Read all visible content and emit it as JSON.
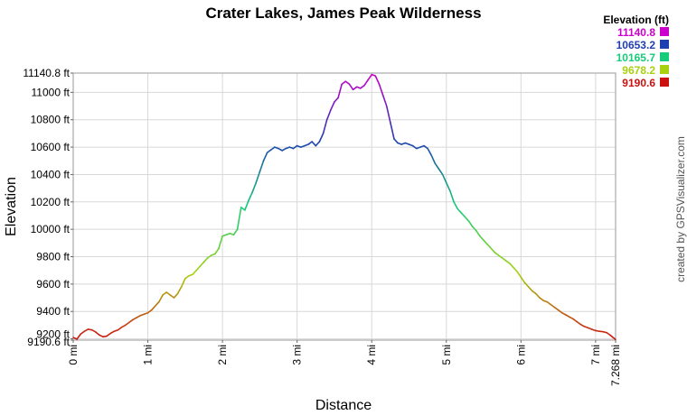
{
  "chart_data": {
    "type": "line",
    "title": "Crater Lakes, James Peak Wilderness",
    "xlabel": "Distance",
    "ylabel": "Elevation",
    "x_unit": "mi",
    "y_unit": "ft",
    "xlim": [
      0,
      7.268
    ],
    "ylim": [
      9190.6,
      11140.8
    ],
    "x_ticks": [
      {
        "value": 0,
        "label": "0 mi"
      },
      {
        "value": 1,
        "label": "1 mi"
      },
      {
        "value": 2,
        "label": "2 mi"
      },
      {
        "value": 3,
        "label": "3 mi"
      },
      {
        "value": 4,
        "label": "4 mi"
      },
      {
        "value": 5,
        "label": "5 mi"
      },
      {
        "value": 6,
        "label": "6 mi"
      },
      {
        "value": 7,
        "label": "7 mi"
      },
      {
        "value": 7.268,
        "label": "7.268 mi"
      }
    ],
    "y_ticks": [
      {
        "value": 9190.6,
        "label": "9190.6 ft"
      },
      {
        "value": 9200,
        "label": "9200 ft"
      },
      {
        "value": 9400,
        "label": "9400 ft"
      },
      {
        "value": 9600,
        "label": "9600 ft"
      },
      {
        "value": 9800,
        "label": "9800 ft"
      },
      {
        "value": 10000,
        "label": "10000 ft"
      },
      {
        "value": 10200,
        "label": "10200 ft"
      },
      {
        "value": 10400,
        "label": "10400 ft"
      },
      {
        "value": 10600,
        "label": "10600 ft"
      },
      {
        "value": 10800,
        "label": "10800 ft"
      },
      {
        "value": 11000,
        "label": "11000 ft"
      },
      {
        "value": 11140.8,
        "label": "11140.8 ft"
      }
    ],
    "grid": true,
    "legend": {
      "title": "Elevation (ft)",
      "placement": "top-right",
      "entries": [
        {
          "label": "11140.8",
          "color": "#cc00cc"
        },
        {
          "label": "10653.2",
          "color": "#1f3fb0"
        },
        {
          "label": "10165.7",
          "color": "#16cc7a"
        },
        {
          "label": "9678.2",
          "color": "#a8d10f"
        },
        {
          "label": "9190.6",
          "color": "#cc1111"
        }
      ]
    },
    "credit": "created by GPSVisualizer.com",
    "series": [
      {
        "x": [
          0,
          0.05,
          0.1,
          0.15,
          0.2,
          0.25,
          0.3,
          0.35,
          0.4,
          0.45,
          0.5,
          0.55,
          0.6,
          0.65,
          0.7,
          0.75,
          0.8,
          0.85,
          0.9,
          0.95,
          1.0,
          1.05,
          1.1,
          1.15,
          1.2,
          1.25,
          1.3,
          1.35,
          1.4,
          1.45,
          1.5,
          1.55,
          1.6,
          1.65,
          1.7,
          1.75,
          1.8,
          1.85,
          1.9,
          1.95,
          2.0,
          2.05,
          2.1,
          2.15,
          2.2,
          2.25,
          2.3,
          2.35,
          2.4,
          2.45,
          2.5,
          2.55,
          2.6,
          2.65,
          2.7,
          2.75,
          2.8,
          2.85,
          2.9,
          2.95,
          3.0,
          3.05,
          3.1,
          3.15,
          3.2,
          3.25,
          3.3,
          3.35,
          3.4,
          3.45,
          3.5,
          3.55,
          3.6,
          3.65,
          3.7,
          3.75,
          3.8,
          3.85,
          3.9,
          3.95,
          4.0,
          4.05,
          4.1,
          4.15,
          4.2,
          4.25,
          4.3,
          4.35,
          4.4,
          4.45,
          4.5,
          4.55,
          4.6,
          4.65,
          4.7,
          4.75,
          4.8,
          4.85,
          4.9,
          4.95,
          5.0,
          5.05,
          5.1,
          5.15,
          5.2,
          5.25,
          5.3,
          5.35,
          5.4,
          5.45,
          5.5,
          5.55,
          5.6,
          5.65,
          5.7,
          5.75,
          5.8,
          5.85,
          5.9,
          5.95,
          6.0,
          6.05,
          6.1,
          6.15,
          6.2,
          6.25,
          6.3,
          6.35,
          6.4,
          6.45,
          6.5,
          6.55,
          6.6,
          6.65,
          6.7,
          6.75,
          6.8,
          6.85,
          6.9,
          6.95,
          7.0,
          7.05,
          7.1,
          7.15,
          7.2,
          7.268
        ],
        "y": [
          9210,
          9198,
          9235,
          9255,
          9270,
          9265,
          9250,
          9228,
          9215,
          9220,
          9240,
          9255,
          9265,
          9285,
          9300,
          9320,
          9340,
          9355,
          9370,
          9380,
          9390,
          9410,
          9440,
          9470,
          9520,
          9540,
          9520,
          9500,
          9530,
          9580,
          9640,
          9660,
          9670,
          9700,
          9730,
          9760,
          9790,
          9810,
          9820,
          9860,
          9950,
          9960,
          9970,
          9960,
          10000,
          10160,
          10140,
          10210,
          10270,
          10340,
          10420,
          10500,
          10560,
          10580,
          10600,
          10590,
          10575,
          10590,
          10600,
          10590,
          10610,
          10600,
          10610,
          10620,
          10640,
          10610,
          10640,
          10700,
          10800,
          10870,
          10930,
          10960,
          11060,
          11080,
          11060,
          11020,
          11040,
          11030,
          11050,
          11090,
          11130,
          11120,
          11060,
          10980,
          10900,
          10780,
          10660,
          10630,
          10620,
          10630,
          10620,
          10610,
          10590,
          10600,
          10610,
          10590,
          10540,
          10480,
          10440,
          10400,
          10340,
          10280,
          10200,
          10150,
          10120,
          10090,
          10060,
          10020,
          9990,
          9950,
          9920,
          9890,
          9860,
          9830,
          9810,
          9790,
          9770,
          9750,
          9720,
          9690,
          9650,
          9610,
          9580,
          9550,
          9530,
          9500,
          9480,
          9470,
          9450,
          9430,
          9410,
          9390,
          9375,
          9360,
          9345,
          9325,
          9305,
          9290,
          9280,
          9270,
          9260,
          9255,
          9252,
          9245,
          9225,
          9195
        ]
      }
    ]
  }
}
